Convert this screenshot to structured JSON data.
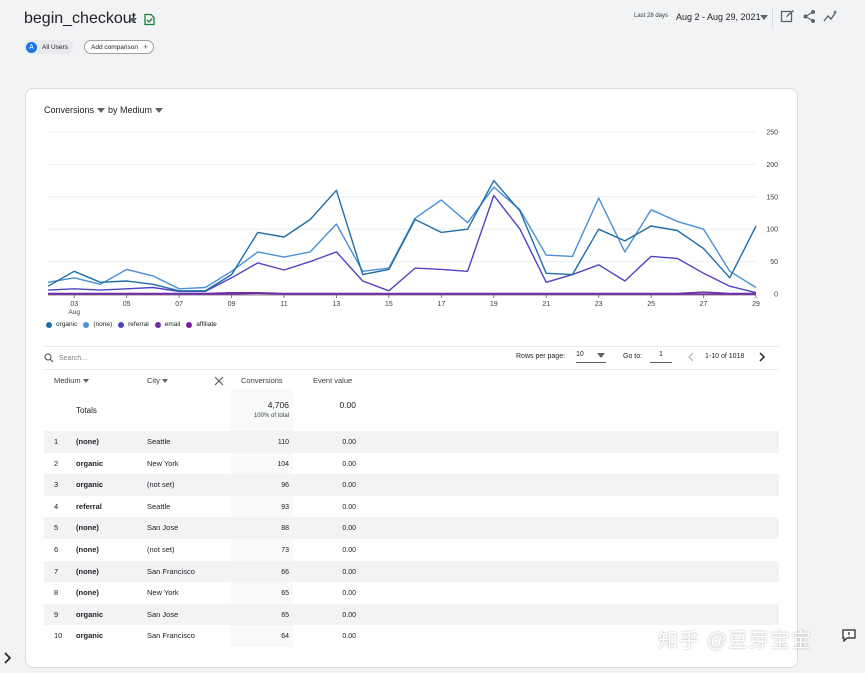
{
  "header": {
    "title": "begin_checkout",
    "date_small": "Last 28 days",
    "date_range": "Aug 2 - Aug 29, 2021"
  },
  "chips": {
    "user_initial": "A",
    "user_label": "All Users",
    "add_comparison": "Add comparison"
  },
  "chart_controls": {
    "metric": "Conversions",
    "dimension": "by Medium"
  },
  "chart_data": {
    "type": "line",
    "x": [
      "02",
      "03",
      "04",
      "05",
      "06",
      "07",
      "08",
      "09",
      "10",
      "11",
      "12",
      "13",
      "14",
      "15",
      "16",
      "17",
      "18",
      "19",
      "20",
      "21",
      "22",
      "23",
      "24",
      "25",
      "26",
      "27",
      "28",
      "29"
    ],
    "xtick_labels": [
      "03",
      "05",
      "07",
      "09",
      "11",
      "13",
      "15",
      "17",
      "19",
      "21",
      "23",
      "25",
      "27",
      "29"
    ],
    "x_sub_label": "Aug",
    "ylim": [
      0,
      250
    ],
    "yticks": [
      "250",
      "200",
      "150",
      "100",
      "50",
      "0"
    ],
    "grid": true,
    "legend_position": "bottom-left",
    "series": [
      {
        "name": "organic",
        "color": "#1f6ea8",
        "values": [
          12,
          35,
          18,
          20,
          15,
          5,
          5,
          30,
          95,
          88,
          115,
          160,
          30,
          38,
          115,
          95,
          100,
          175,
          128,
          32,
          30,
          100,
          82,
          105,
          98,
          70,
          25,
          105
        ]
      },
      {
        "name": "(none)",
        "color": "#4a90d6",
        "values": [
          18,
          25,
          15,
          38,
          28,
          8,
          10,
          35,
          65,
          57,
          65,
          108,
          35,
          40,
          117,
          145,
          110,
          165,
          130,
          60,
          58,
          148,
          65,
          130,
          112,
          100,
          35,
          10
        ]
      },
      {
        "name": "referral",
        "color": "#4e44c4",
        "values": [
          6,
          8,
          6,
          8,
          10,
          4,
          4,
          25,
          48,
          37,
          50,
          65,
          20,
          5,
          40,
          38,
          35,
          152,
          100,
          18,
          30,
          45,
          20,
          58,
          55,
          32,
          12,
          2
        ]
      },
      {
        "name": "email",
        "color": "#6b2fa8",
        "values": [
          1,
          1,
          1,
          1,
          1,
          1,
          1,
          2,
          2,
          1,
          1,
          1,
          1,
          1,
          1,
          1,
          1,
          1,
          1,
          1,
          1,
          1,
          1,
          1,
          1,
          3,
          1,
          1
        ]
      },
      {
        "name": "affiliate",
        "color": "#7b1fa2",
        "values": [
          0,
          0,
          0,
          0,
          0,
          0,
          0,
          0,
          1,
          0,
          0,
          0,
          0,
          0,
          0,
          0,
          0,
          0,
          0,
          0,
          0,
          0,
          0,
          0,
          0,
          0,
          0,
          0
        ]
      }
    ]
  },
  "table_controls": {
    "search_placeholder": "Search...",
    "rows_per_page_label": "Rows per page:",
    "rows_per_page": "10",
    "goto_label": "Go to:",
    "goto_value": "1",
    "pager_text": "1-10 of 1018"
  },
  "table": {
    "headers": {
      "medium": "Medium",
      "city": "City",
      "conversions": "Conversions",
      "event_value": "Event value"
    },
    "totals": {
      "label": "Totals",
      "conversions": "4,706",
      "conversions_sub": "100% of total",
      "event_value": "0.00"
    },
    "rows": [
      {
        "rank": "1",
        "medium": "(none)",
        "city": "Seattle",
        "conversions": "110",
        "event_value": "0.00"
      },
      {
        "rank": "2",
        "medium": "organic",
        "city": "New York",
        "conversions": "104",
        "event_value": "0.00"
      },
      {
        "rank": "3",
        "medium": "organic",
        "city": "(not set)",
        "conversions": "96",
        "event_value": "0.00"
      },
      {
        "rank": "4",
        "medium": "referral",
        "city": "Seattle",
        "conversions": "93",
        "event_value": "0.00"
      },
      {
        "rank": "5",
        "medium": "(none)",
        "city": "San Jose",
        "conversions": "88",
        "event_value": "0.00"
      },
      {
        "rank": "6",
        "medium": "(none)",
        "city": "(not set)",
        "conversions": "73",
        "event_value": "0.00"
      },
      {
        "rank": "7",
        "medium": "(none)",
        "city": "San Francisco",
        "conversions": "66",
        "event_value": "0.00"
      },
      {
        "rank": "8",
        "medium": "(none)",
        "city": "New York",
        "conversions": "65",
        "event_value": "0.00"
      },
      {
        "rank": "9",
        "medium": "organic",
        "city": "San Jose",
        "conversions": "65",
        "event_value": "0.00"
      },
      {
        "rank": "10",
        "medium": "organic",
        "city": "San Francisco",
        "conversions": "64",
        "event_value": "0.00"
      }
    ]
  },
  "watermark": "知乎 @豆芽宝宝"
}
